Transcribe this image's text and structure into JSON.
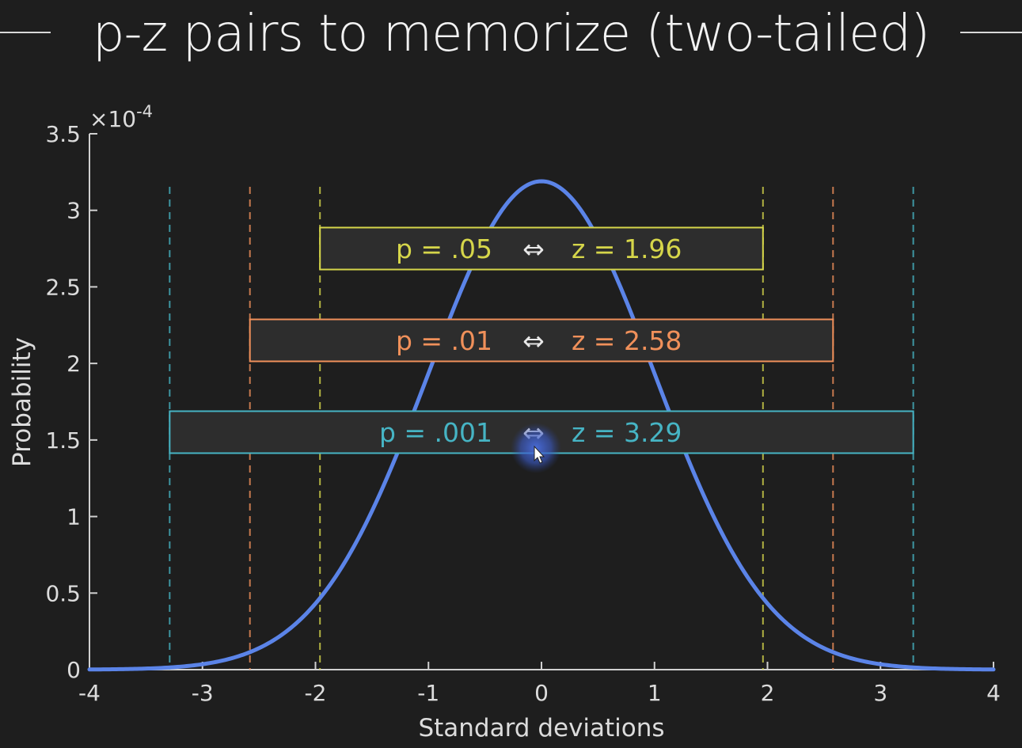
{
  "title": "p-z pairs to memorize (two-tailed)",
  "chart_data": {
    "type": "line",
    "title": "",
    "xlabel": "Standard deviations",
    "ylabel": "Probability",
    "y_exponent_label": "×10",
    "y_exponent_value": "-4",
    "xlim": [
      -4,
      4
    ],
    "ylim": [
      0,
      3.5
    ],
    "xticks": [
      "-4",
      "-3",
      "-2",
      "-1",
      "0",
      "1",
      "2",
      "3",
      "4"
    ],
    "yticks": [
      "0",
      "0.5",
      "1",
      "1.5",
      "2",
      "2.5",
      "3",
      "3.5"
    ],
    "series": [
      {
        "color": "#5b84e8",
        "distribution": "standard normal",
        "peak": 3.19,
        "mean": 0,
        "sd": 1
      }
    ],
    "thresholds": [
      {
        "z": 1.96,
        "p": ".05",
        "color": "#d6d64a",
        "label_p": "p = .05",
        "arrow": "⇔",
        "label_z": "z = 1.96"
      },
      {
        "z": 2.58,
        "p": ".01",
        "color": "#f0905a",
        "label_p": "p = .01",
        "arrow": "⇔",
        "label_z": "z = 2.58"
      },
      {
        "z": 3.29,
        "p": ".001",
        "color": "#46b4c4",
        "label_p": "p = .001",
        "arrow": "⇔",
        "label_z": "z = 3.29"
      }
    ],
    "grid": false,
    "legend": "none"
  }
}
